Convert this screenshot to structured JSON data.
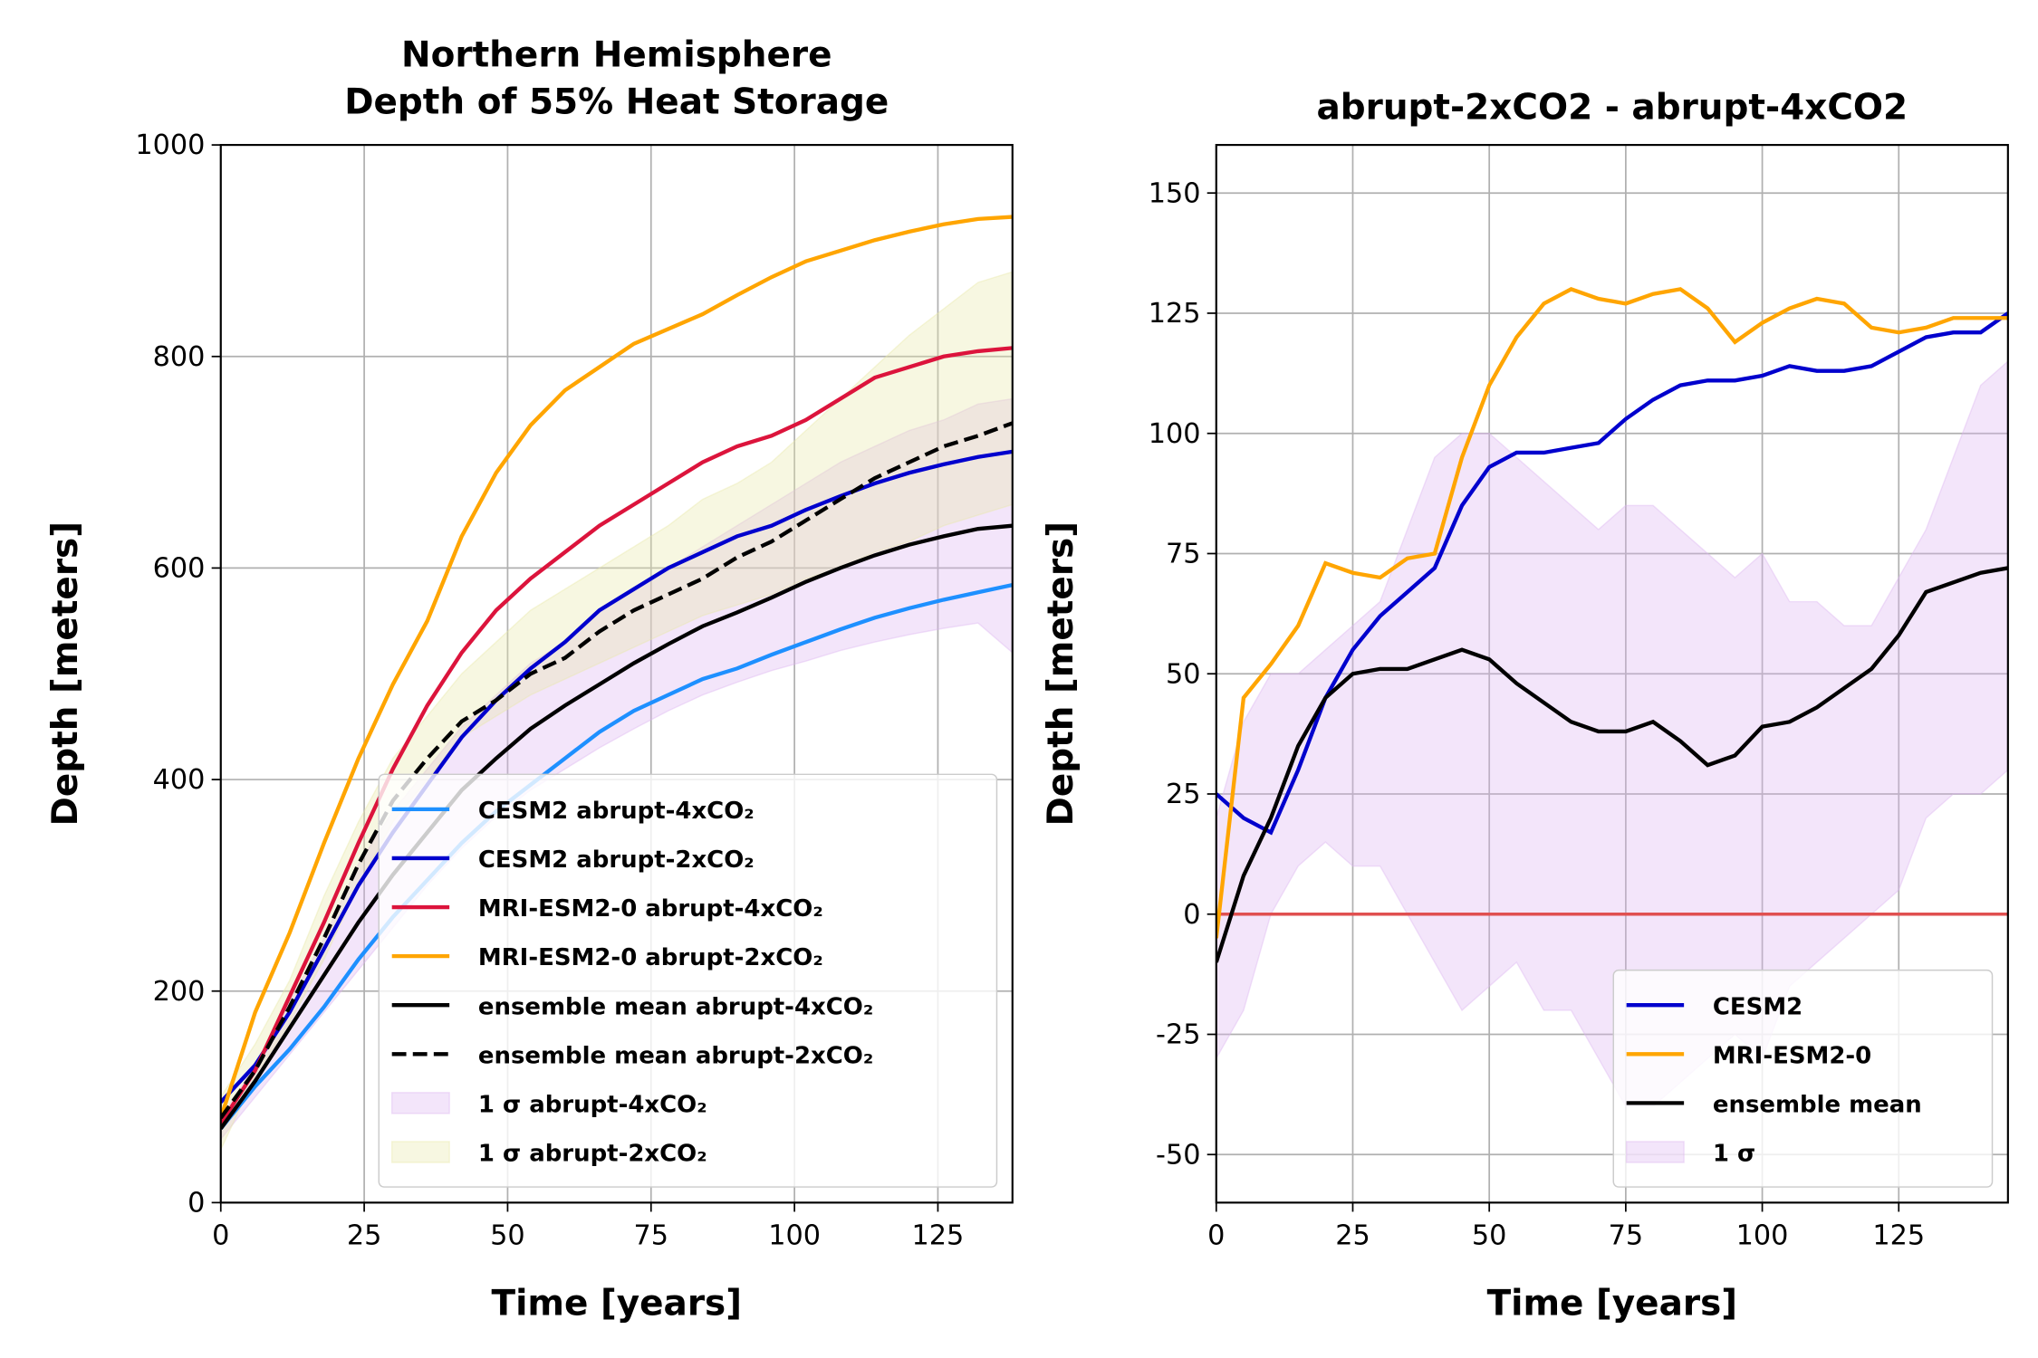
{
  "chart_data": [
    {
      "type": "line",
      "title": [
        "Northern Hemisphere",
        "Depth of 55% Heat Storage"
      ],
      "xlabel": "Time [years]",
      "ylabel": "Depth [meters]",
      "x": [
        0,
        6,
        12,
        18,
        24,
        30,
        36,
        42,
        48,
        54,
        60,
        66,
        72,
        78,
        84,
        90,
        96,
        102,
        108,
        114,
        120,
        126,
        132,
        138
      ],
      "xlim": [
        0,
        138
      ],
      "ylim": [
        0,
        1000
      ],
      "xticks": [
        0,
        25,
        50,
        75,
        100,
        125
      ],
      "yticks": [
        0,
        200,
        400,
        600,
        800,
        1000
      ],
      "grid": true,
      "legend": "lower right",
      "series": [
        {
          "name": "CESM2 abrupt-4xCO₂",
          "color": "#1e90ff",
          "values": [
            70,
            110,
            145,
            185,
            230,
            270,
            305,
            340,
            370,
            395,
            420,
            445,
            465,
            480,
            495,
            505,
            518,
            530,
            542,
            553,
            562,
            570,
            577,
            584
          ]
        },
        {
          "name": "CESM2 abrupt-2xCO₂",
          "color": "#0000cd",
          "values": [
            95,
            130,
            180,
            240,
            300,
            350,
            395,
            440,
            475,
            505,
            530,
            560,
            580,
            600,
            615,
            630,
            640,
            655,
            668,
            680,
            690,
            698,
            705,
            710
          ]
        },
        {
          "name": "MRI-ESM2-0 abrupt-4xCO₂",
          "color": "#dc143c",
          "values": [
            75,
            125,
            195,
            265,
            340,
            410,
            470,
            520,
            560,
            590,
            615,
            640,
            660,
            680,
            700,
            715,
            725,
            740,
            760,
            780,
            790,
            800,
            805,
            808
          ]
        },
        {
          "name": "MRI-ESM2-0 abrupt-2xCO₂",
          "color": "#ffa500",
          "values": [
            80,
            180,
            255,
            340,
            420,
            490,
            550,
            630,
            690,
            735,
            768,
            790,
            812,
            826,
            840,
            858,
            875,
            890,
            900,
            910,
            918,
            925,
            930,
            932
          ]
        },
        {
          "name": "ensemble mean abrupt-4xCO₂",
          "color": "#000000",
          "values": [
            70,
            115,
            165,
            215,
            265,
            310,
            350,
            390,
            420,
            448,
            470,
            490,
            510,
            528,
            545,
            558,
            572,
            587,
            600,
            612,
            622,
            630,
            637,
            640
          ]
        },
        {
          "name": "ensemble mean abrupt-2xCO₂",
          "color": "#000000",
          "dashed": true,
          "values": [
            80,
            125,
            185,
            250,
            320,
            380,
            420,
            455,
            475,
            500,
            515,
            540,
            560,
            575,
            590,
            610,
            625,
            645,
            665,
            685,
            700,
            715,
            725,
            737
          ]
        }
      ],
      "bands": [
        {
          "name": "1 σ abrupt-4xCO₂",
          "color": "#dcb4f0",
          "lower": [
            60,
            100,
            140,
            180,
            220,
            260,
            300,
            335,
            365,
            390,
            410,
            430,
            448,
            465,
            480,
            492,
            503,
            512,
            522,
            530,
            537,
            543,
            548,
            520
          ],
          "upper": [
            80,
            130,
            190,
            250,
            320,
            370,
            410,
            450,
            480,
            510,
            530,
            560,
            580,
            600,
            620,
            640,
            660,
            680,
            700,
            715,
            730,
            740,
            755,
            760
          ]
        },
        {
          "name": "1 σ abrupt-2xCO₂",
          "color": "#e8e8a8",
          "lower": [
            50,
            120,
            170,
            230,
            300,
            360,
            400,
            440,
            460,
            480,
            495,
            510,
            525,
            540,
            555,
            565,
            575,
            590,
            600,
            615,
            625,
            640,
            650,
            660
          ],
          "upper": [
            100,
            150,
            210,
            290,
            360,
            420,
            460,
            500,
            530,
            560,
            580,
            600,
            620,
            640,
            665,
            680,
            700,
            730,
            760,
            790,
            820,
            845,
            870,
            880
          ]
        }
      ]
    },
    {
      "type": "line",
      "title": "abrupt-2xCO2 - abrupt-4xCO2",
      "xlabel": "Time [years]",
      "ylabel": "Depth [meters]",
      "x": [
        0,
        5,
        10,
        15,
        20,
        25,
        30,
        35,
        40,
        45,
        50,
        55,
        60,
        65,
        70,
        75,
        80,
        85,
        90,
        95,
        100,
        105,
        110,
        115,
        120,
        125,
        130,
        135,
        140,
        145
      ],
      "xlim": [
        0,
        145
      ],
      "ylim": [
        -60,
        160
      ],
      "xticks": [
        0,
        25,
        50,
        75,
        100,
        125
      ],
      "yticks": [
        -50,
        -25,
        0,
        25,
        50,
        75,
        100,
        125,
        150
      ],
      "grid": true,
      "legend": "lower right",
      "reference_line": {
        "value": 0,
        "color": "#e05050"
      },
      "series": [
        {
          "name": "CESM2",
          "color": "#0000cd",
          "values": [
            25,
            20,
            17,
            30,
            45,
            55,
            62,
            67,
            72,
            85,
            93,
            96,
            96,
            97,
            98,
            103,
            107,
            110,
            111,
            111,
            112,
            114,
            113,
            113,
            114,
            117,
            120,
            121,
            121,
            125
          ]
        },
        {
          "name": "MRI-ESM2-0",
          "color": "#ffa500",
          "values": [
            -5,
            45,
            52,
            60,
            73,
            71,
            70,
            74,
            75,
            95,
            110,
            120,
            127,
            130,
            128,
            127,
            129,
            130,
            126,
            119,
            123,
            126,
            128,
            127,
            122,
            121,
            122,
            124,
            124,
            124
          ]
        },
        {
          "name": "ensemble mean",
          "color": "#000000",
          "values": [
            -10,
            8,
            20,
            35,
            45,
            50,
            51,
            51,
            53,
            55,
            53,
            48,
            44,
            40,
            38,
            38,
            40,
            36,
            31,
            33,
            39,
            40,
            43,
            47,
            51,
            58,
            67,
            69,
            71,
            72
          ]
        }
      ],
      "bands": [
        {
          "name": "1 σ",
          "color": "#dcb4f0",
          "lower": [
            -30,
            -20,
            0,
            10,
            15,
            10,
            10,
            0,
            -10,
            -20,
            -15,
            -10,
            -20,
            -20,
            -30,
            -40,
            -40,
            -35,
            -30,
            -25,
            -30,
            -15,
            -10,
            -5,
            0,
            5,
            20,
            25,
            25,
            30
          ],
          "upper": [
            20,
            40,
            50,
            50,
            55,
            60,
            65,
            80,
            95,
            100,
            100,
            95,
            90,
            85,
            80,
            85,
            85,
            80,
            75,
            70,
            75,
            65,
            65,
            60,
            60,
            70,
            80,
            95,
            110,
            115
          ]
        }
      ]
    }
  ]
}
